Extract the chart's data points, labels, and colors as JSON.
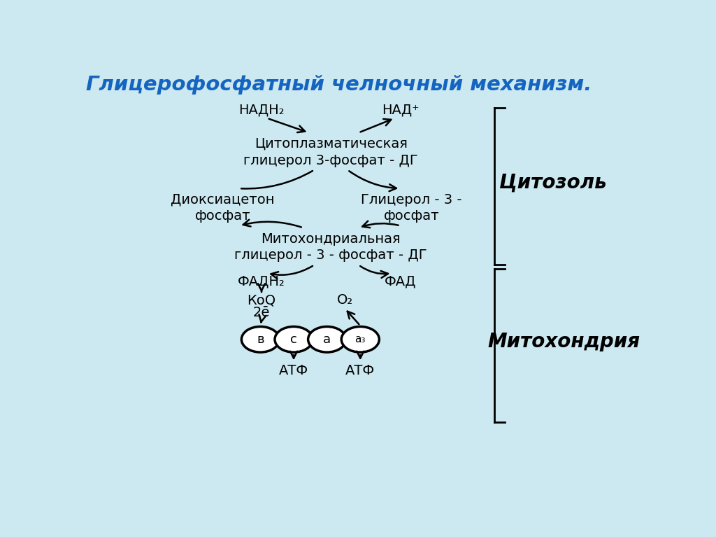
{
  "title": "Глицерофосфатный челночный механизм.",
  "bg_color": "#cce8f0",
  "text_color": "#000000",
  "title_color": "#1565c0",
  "cytosol_label": "Цитозоль",
  "mito_label": "Митохондрия",
  "nadh2_label": "НАДН₂",
  "nad_label": "НАД⁺",
  "cyto_enzyme_line1": "Цитоплазматическая",
  "cyto_enzyme_line2": "глицерол 3-фосфат - ДГ",
  "dioxa_line1": "Диоксиацетон",
  "dioxa_line2": "фосфат",
  "glycerol3p_line1": "Глицерол - 3 -",
  "glycerol3p_line2": "фосфат",
  "mito_enzyme_line1": "Митохондриальная",
  "mito_enzyme_line2": "глицерол - 3 - фосфат - ДГ",
  "fadh2": "ФАДН₂",
  "fad": "ФАД",
  "koq": "КоQ",
  "two_e": "2ē",
  "o2": "O₂",
  "atf1": "АТФ",
  "atf2": "АТФ",
  "circles": [
    "в",
    "с",
    "а",
    "а₃"
  ],
  "circle_color": "#ffffff",
  "arrow_lw": 1.8,
  "fs_main": 14,
  "fs_title": 21,
  "fs_labels": 20
}
